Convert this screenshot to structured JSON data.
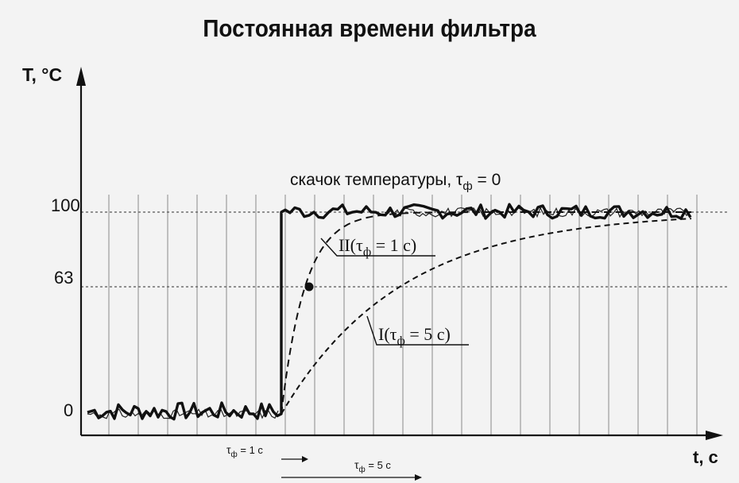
{
  "title": "Постоянная времени фильтра",
  "y_axis_label": "T, °С",
  "x_axis_label": "t, с",
  "y_ticks": [
    "100",
    "63",
    "0"
  ],
  "annotations": {
    "step_prefix": "скачок температуры, τ",
    "step_sub": "ф",
    "step_suffix": " = 0",
    "filter2_prefix": "II(τ",
    "filter2_sub": "ф",
    "filter2_suffix": " = 1 с)",
    "filter1_prefix": "I(τ",
    "filter1_sub": "ф",
    "filter1_suffix": " = 5 с)",
    "tau1_prefix": "τ",
    "tau1_sub": "ф",
    "tau1_suffix": " = 1 с",
    "tau5_prefix": "τ",
    "tau5_sub": "ф",
    "tau5_suffix": " = 5 с"
  },
  "colors": {
    "ink": "#111111",
    "grid": "#8a8a8a",
    "background": "#f3f3f3"
  },
  "chart_data": {
    "type": "line",
    "title": "Постоянная времени фильтра",
    "xlabel": "t, с",
    "ylabel": "T, °С",
    "ylim": [
      0,
      100
    ],
    "y_ticks": [
      0,
      63,
      100
    ],
    "step_time": 0,
    "grid": true,
    "series": [
      {
        "name": "скачок температуры, τф = 0",
        "style": "solid-bold",
        "tau": 0
      },
      {
        "name": "II(τф = 1 с)",
        "style": "dashed",
        "tau": 1
      },
      {
        "name": "I(τф = 5 с)",
        "style": "dashed",
        "tau": 5
      }
    ],
    "marked_point": {
      "t": 1,
      "value": 63
    }
  }
}
